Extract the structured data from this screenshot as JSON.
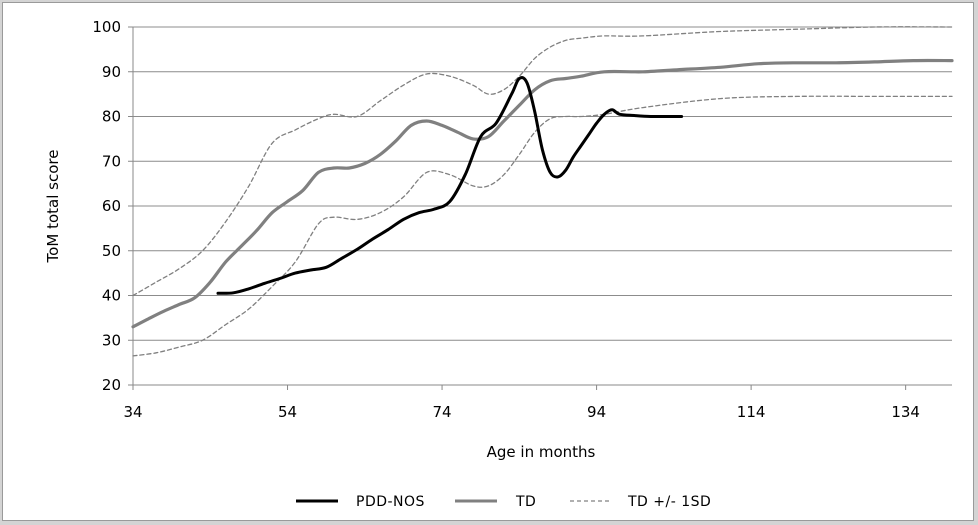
{
  "chart_data": {
    "type": "line",
    "title": "",
    "xlabel": "Age in months",
    "ylabel": "ToM total score",
    "xlim": [
      34,
      140
    ],
    "ylim": [
      20,
      100
    ],
    "x_ticks": [
      34,
      54,
      74,
      94,
      114,
      134
    ],
    "y_ticks": [
      20,
      30,
      40,
      50,
      60,
      70,
      80,
      90,
      100
    ],
    "grid": "horizontal",
    "legend_position": "bottom",
    "series": [
      {
        "name": "PDD-NOS",
        "color": "#000000",
        "style": "solid",
        "x": [
          45,
          47,
          49,
          51,
          53,
          55,
          57,
          59,
          61,
          63,
          65,
          67,
          69,
          71,
          73,
          75,
          77,
          79,
          81,
          83,
          84,
          85,
          86,
          87,
          88,
          89,
          90,
          91,
          92,
          93,
          94,
          95,
          96,
          97,
          99,
          101,
          103,
          105
        ],
        "y": [
          40.5,
          40.6,
          41.5,
          42.7,
          43.8,
          45,
          45.7,
          46.3,
          48.3,
          50.3,
          52.6,
          54.7,
          57,
          58.5,
          59.3,
          61,
          67,
          75.5,
          78.5,
          85,
          88.5,
          87.5,
          81,
          72.5,
          67.5,
          66.5,
          68,
          71,
          73.5,
          76,
          78.5,
          80.5,
          81.5,
          80.5,
          80.2,
          80,
          80,
          80
        ]
      },
      {
        "name": "TD",
        "color": "#808080",
        "style": "solid",
        "x": [
          34,
          36,
          38,
          40,
          42,
          44,
          46,
          48,
          50,
          52,
          54,
          56,
          58,
          60,
          62,
          64,
          66,
          68,
          70,
          72,
          74,
          76,
          78,
          80,
          82,
          84,
          86,
          88,
          90,
          92,
          95,
          100,
          105,
          110,
          115,
          120,
          125,
          130,
          135,
          140
        ],
        "y": [
          33,
          34.8,
          36.5,
          38,
          39.5,
          43,
          47.5,
          51,
          54.5,
          58.5,
          61,
          63.5,
          67.5,
          68.5,
          68.5,
          69.5,
          71.5,
          74.5,
          78,
          79,
          78,
          76.5,
          75,
          75.5,
          79,
          82.5,
          86,
          88,
          88.5,
          89,
          90,
          90,
          90.5,
          91,
          91.8,
          92,
          92,
          92.2,
          92.5,
          92.5
        ]
      },
      {
        "name": "TD +/- 1SD",
        "color": "#808080",
        "style": "dashed",
        "x": [
          34,
          37,
          40,
          43,
          46,
          49,
          52,
          55,
          58,
          60,
          63,
          66,
          69,
          72,
          75,
          78,
          80,
          82,
          84,
          86,
          88,
          90,
          92,
          95,
          100,
          110,
          120,
          130,
          140
        ],
        "y": [
          40,
          43,
          46,
          50,
          56.5,
          64.5,
          74,
          77,
          79.5,
          80.5,
          80,
          83.5,
          87,
          89.5,
          89,
          87,
          85,
          86,
          89,
          93,
          95.5,
          97,
          97.5,
          98,
          98,
          99,
          99.5,
          100,
          100
        ]
      },
      {
        "name": "TD +/- 1SD",
        "color": "#808080",
        "style": "dashed",
        "x": [
          34,
          37,
          40,
          43,
          46,
          49,
          52,
          55,
          58,
          60,
          63,
          66,
          69,
          72,
          75,
          78,
          80,
          82,
          84,
          86,
          88,
          90,
          92,
          95,
          100,
          110,
          120,
          130,
          140
        ],
        "y": [
          26.5,
          27.2,
          28.5,
          30,
          33.5,
          37,
          42,
          47.5,
          56,
          57.5,
          57,
          58.5,
          62,
          67.5,
          67,
          64.5,
          64.5,
          67,
          71.5,
          76.5,
          79.5,
          80,
          80,
          80.5,
          82,
          84,
          84.5,
          84.5,
          84.5
        ]
      }
    ],
    "legend": [
      {
        "label": "PDD-NOS",
        "color": "#000000",
        "style": "solid"
      },
      {
        "label": "TD",
        "color": "#808080",
        "style": "solid"
      },
      {
        "label": "TD +/- 1SD",
        "color": "#808080",
        "style": "dashed"
      }
    ]
  }
}
